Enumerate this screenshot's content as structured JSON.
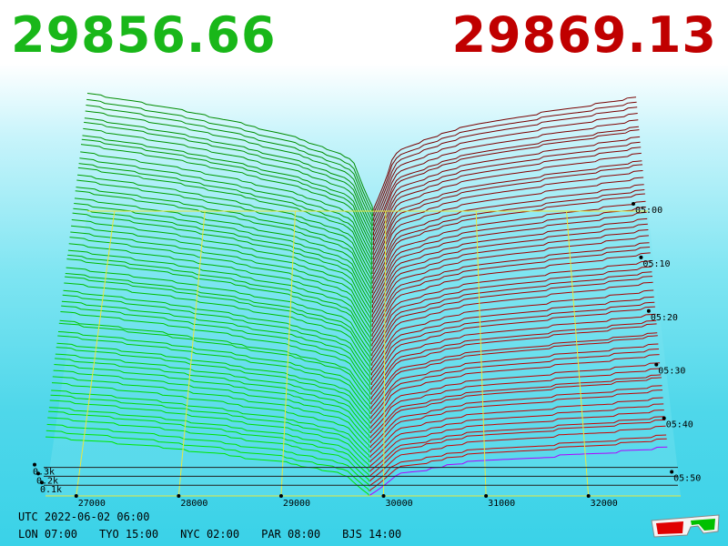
{
  "header": {
    "bid_price": "29856.66",
    "ask_price": "29869.13",
    "bid_color": "#19b719",
    "ask_color": "#c00000"
  },
  "footer": {
    "utc_line": "UTC 2022-06-02 06:00",
    "zones": [
      "LON 07:00",
      "TYO 15:00",
      "NYC 02:00",
      "PAR 08:00",
      "BJS 14:00"
    ]
  },
  "icons": {
    "corner": "3d-glasses-icon"
  },
  "chart_data": {
    "type": "3d-depth",
    "price_axis": {
      "ticks": [
        27000,
        28000,
        29000,
        30000,
        31000,
        32000
      ],
      "min": 26700,
      "max": 32900
    },
    "volume_axis": {
      "ticks": [
        0.1,
        0.2,
        0.3
      ],
      "tick_labels": [
        "0.1k",
        "0.2k",
        "0.3k"
      ],
      "unit": "k"
    },
    "time_axis": {
      "ticks": [
        "05:00",
        "05:10",
        "05:20",
        "05:30",
        "05:40",
        "05:50"
      ]
    },
    "bid_price": 29856.66,
    "ask_price": 29869.13,
    "snapshots": 60,
    "bid_color": "#00b000",
    "ask_color": "#c00000",
    "latest_ask_color": "#b000ff",
    "grid": true
  }
}
